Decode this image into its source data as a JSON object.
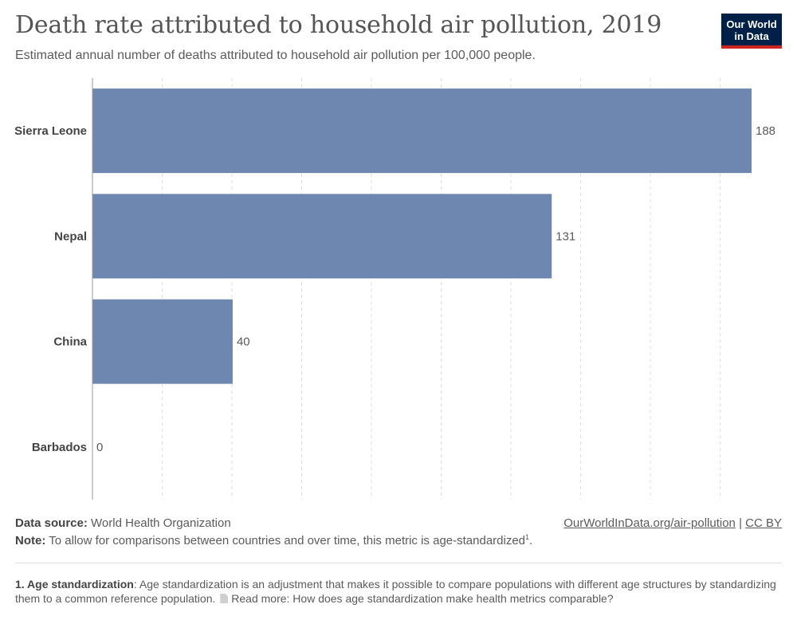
{
  "header": {
    "title": "Death rate attributed to household air pollution, 2019",
    "subtitle": "Estimated annual number of deaths attributed to household air pollution per 100,000 people.",
    "logo_line1": "Our World",
    "logo_line2": "in Data"
  },
  "chart_data": {
    "type": "bar",
    "orientation": "horizontal",
    "categories": [
      "Sierra Leone",
      "Nepal",
      "China",
      "Barbados"
    ],
    "values": [
      188,
      131,
      40,
      0
    ],
    "value_labels": [
      "188",
      "131",
      "40",
      "0"
    ],
    "xlim": [
      0,
      190
    ],
    "grid": "vertical dashed",
    "bar_color": "#6d87b0"
  },
  "footer": {
    "source_label": "Data source:",
    "source_text": "World Health Organization",
    "note_label": "Note:",
    "note_text": "To allow for comparisons between countries and over time, this metric is age-standardized",
    "note_sup": "1",
    "note_end": ".",
    "link_text": "OurWorldInData.org/air-pollution",
    "separator": "|",
    "license_text": "CC BY"
  },
  "footnote": {
    "label": "1. Age standardization",
    "text": ": Age standardization is an adjustment that makes it possible to compare populations with different age structures by standardizing them to a common reference population.",
    "read_more": "Read more: How does age standardization make health metrics comparable?"
  }
}
